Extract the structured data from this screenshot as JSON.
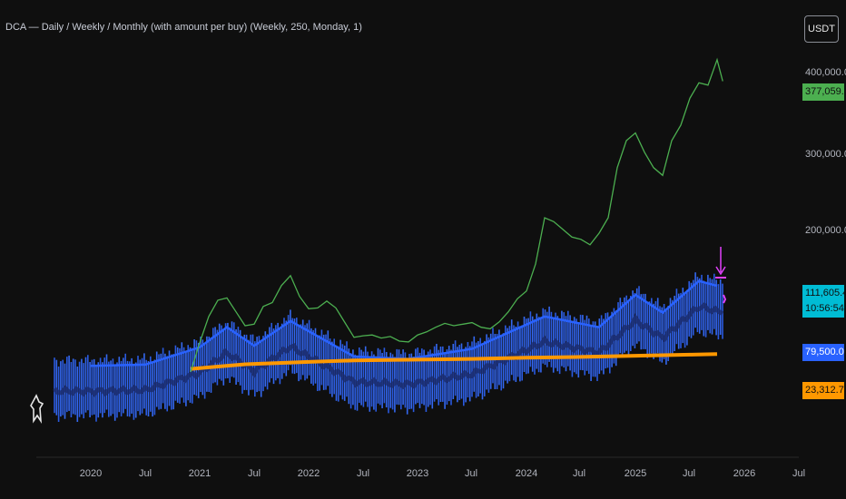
{
  "header": {
    "title": "DCA — Daily / Weekly / Monthly (with amount per buy) (Weekly, 250, Monday, 1)",
    "currency": "USDT"
  },
  "price_axis": {
    "ticks": [
      "400,000.0",
      "300,000.0",
      "200,000.0"
    ]
  },
  "time_axis": {
    "ticks": [
      "2020",
      "Jul",
      "2021",
      "Jul",
      "2022",
      "Jul",
      "2023",
      "Jul",
      "2024",
      "Jul",
      "2025",
      "Jul",
      "2026",
      "Jul"
    ]
  },
  "labels": {
    "portfolio_value": "377,059.5",
    "price": "111,605.4",
    "countdown": "10:56:54",
    "price_line": "79,500.0",
    "avg_cost": "23,312.7"
  },
  "colors": {
    "background": "#0f0f0f",
    "portfolio": "#4caf50",
    "price_bars": "#2962ff",
    "avg_cost": "#ff9800",
    "price_label": "#00bcd4",
    "marker": "#e040fb"
  },
  "chart_data": {
    "type": "line",
    "title": "DCA — Daily / Weekly / Monthly (with amount per buy) (Weekly, 250, Monday, 1)",
    "x_range": [
      "2019-10",
      "2026-08"
    ],
    "y_visible_ticks": [
      200000,
      300000,
      400000
    ],
    "grid": false,
    "series": [
      {
        "style": "line",
        "color": "#4caf50",
        "points": [
          [
            "2020-12",
            0
          ],
          [
            "2021-01",
            38000
          ],
          [
            "2021-02",
            72000
          ],
          [
            "2021-03",
            93000
          ],
          [
            "2021-04",
            96000
          ],
          [
            "2021-05",
            78000
          ],
          [
            "2021-06",
            60000
          ],
          [
            "2021-07",
            62000
          ],
          [
            "2021-08",
            85000
          ],
          [
            "2021-09",
            90000
          ],
          [
            "2021-10",
            112000
          ],
          [
            "2021-11",
            125000
          ],
          [
            "2021-12",
            98000
          ],
          [
            "2022-01",
            82000
          ],
          [
            "2022-02",
            83000
          ],
          [
            "2022-03",
            92000
          ],
          [
            "2022-04",
            83000
          ],
          [
            "2022-05",
            64000
          ],
          [
            "2022-06",
            45000
          ],
          [
            "2022-07",
            47000
          ],
          [
            "2022-08",
            48000
          ],
          [
            "2022-09",
            44000
          ],
          [
            "2022-10",
            46000
          ],
          [
            "2022-11",
            40000
          ],
          [
            "2022-12",
            39000
          ],
          [
            "2023-01",
            48000
          ],
          [
            "2023-02",
            52000
          ],
          [
            "2023-03",
            58000
          ],
          [
            "2023-04",
            63000
          ],
          [
            "2023-05",
            60000
          ],
          [
            "2023-06",
            62000
          ],
          [
            "2023-07",
            64000
          ],
          [
            "2023-08",
            58000
          ],
          [
            "2023-09",
            56000
          ],
          [
            "2023-10",
            65000
          ],
          [
            "2023-11",
            78000
          ],
          [
            "2023-12",
            95000
          ],
          [
            "2024-01",
            105000
          ],
          [
            "2024-02",
            140000
          ],
          [
            "2024-03",
            200000
          ],
          [
            "2024-04",
            195000
          ],
          [
            "2024-05",
            185000
          ],
          [
            "2024-06",
            175000
          ],
          [
            "2024-07",
            172000
          ],
          [
            "2024-08",
            165000
          ],
          [
            "2024-09",
            180000
          ],
          [
            "2024-10",
            200000
          ],
          [
            "2024-11",
            265000
          ],
          [
            "2024-12",
            300000
          ],
          [
            "2025-01",
            310000
          ],
          [
            "2025-02",
            285000
          ],
          [
            "2025-03",
            265000
          ],
          [
            "2025-04",
            255000
          ],
          [
            "2025-05",
            300000
          ],
          [
            "2025-06",
            320000
          ],
          [
            "2025-07",
            355000
          ],
          [
            "2025-08",
            375000
          ],
          [
            "2025-09",
            372000
          ],
          [
            "2025-10",
            405000
          ],
          [
            "2025-10-20",
            377059.5
          ]
        ]
      },
      {
        "style": "line",
        "color": "#2962ff",
        "points": [
          [
            "2020-01",
            8000
          ],
          [
            "2020-07",
            9500
          ],
          [
            "2021-01",
            32000
          ],
          [
            "2021-04",
            58000
          ],
          [
            "2021-07",
            34000
          ],
          [
            "2021-11",
            66000
          ],
          [
            "2022-06",
            20000
          ],
          [
            "2022-12",
            17000
          ],
          [
            "2023-07",
            30000
          ],
          [
            "2024-03",
            72000
          ],
          [
            "2024-09",
            58000
          ],
          [
            "2025-01",
            100000
          ],
          [
            "2025-04",
            77000
          ],
          [
            "2025-08",
            118000
          ],
          [
            "2025-10",
            111605.4
          ]
        ]
      },
      {
        "style": "line",
        "color": "#ff9800",
        "points": [
          [
            "2020-12",
            4000
          ],
          [
            "2021-06",
            10000
          ],
          [
            "2022-01",
            13000
          ],
          [
            "2022-06",
            15000
          ],
          [
            "2023-01",
            16000
          ],
          [
            "2023-07",
            17000
          ],
          [
            "2024-01",
            18500
          ],
          [
            "2024-07",
            19500
          ],
          [
            "2025-01",
            21000
          ],
          [
            "2025-07",
            22500
          ],
          [
            "2025-10",
            23312.7
          ]
        ]
      }
    ]
  }
}
